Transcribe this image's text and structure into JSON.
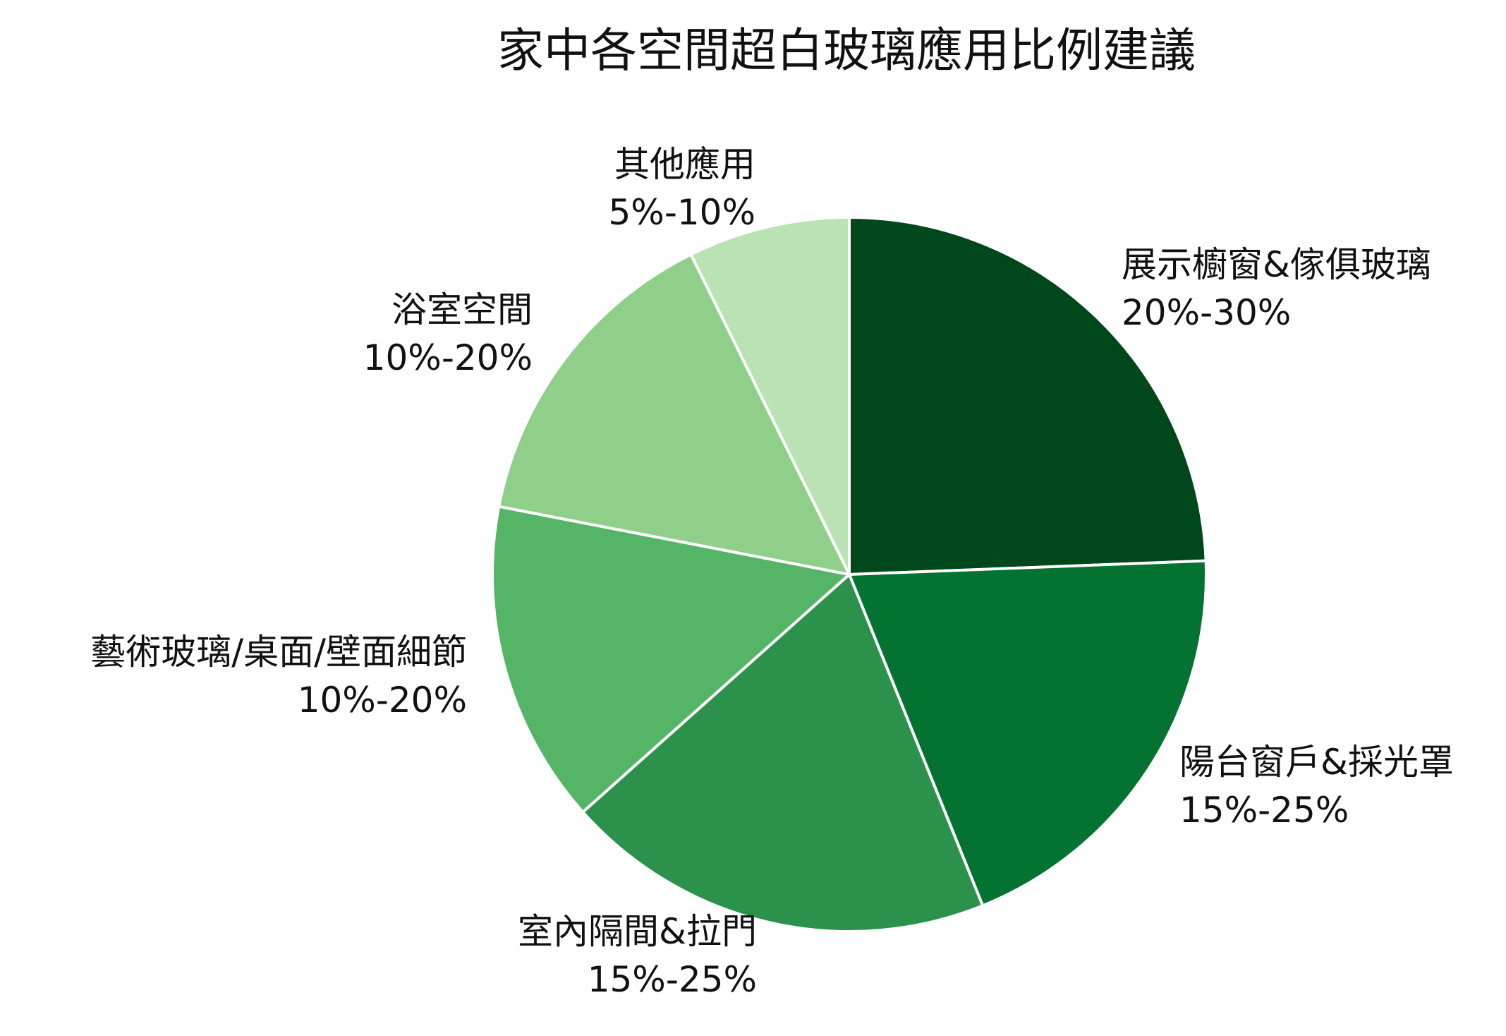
{
  "chart_data": {
    "type": "pie",
    "title": "家中各空間超白玻璃應用比例建議",
    "start_angle_deg": 90,
    "direction": "clockwise",
    "slices": [
      {
        "label": "展示櫥窗&傢俱玻璃",
        "range_text": "20%-30%",
        "value": 25.0,
        "color": "#00471c"
      },
      {
        "label": "陽台窗戶&採光罩",
        "range_text": "15%-25%",
        "value": 20.0,
        "color": "#047230"
      },
      {
        "label": "室內隔間&拉門",
        "range_text": "15%-25%",
        "value": 20.0,
        "color": "#2c924b"
      },
      {
        "label": "藝術玻璃/桌面/壁面細節",
        "range_text": "10%-20%",
        "value": 15.0,
        "color": "#55b567"
      },
      {
        "label": "浴室空間",
        "range_text": "10%-20%",
        "value": 15.0,
        "color": "#8fcf89"
      },
      {
        "label": "其他應用",
        "range_text": "5%-10%",
        "value": 7.5,
        "color": "#b9e3b2"
      }
    ]
  }
}
